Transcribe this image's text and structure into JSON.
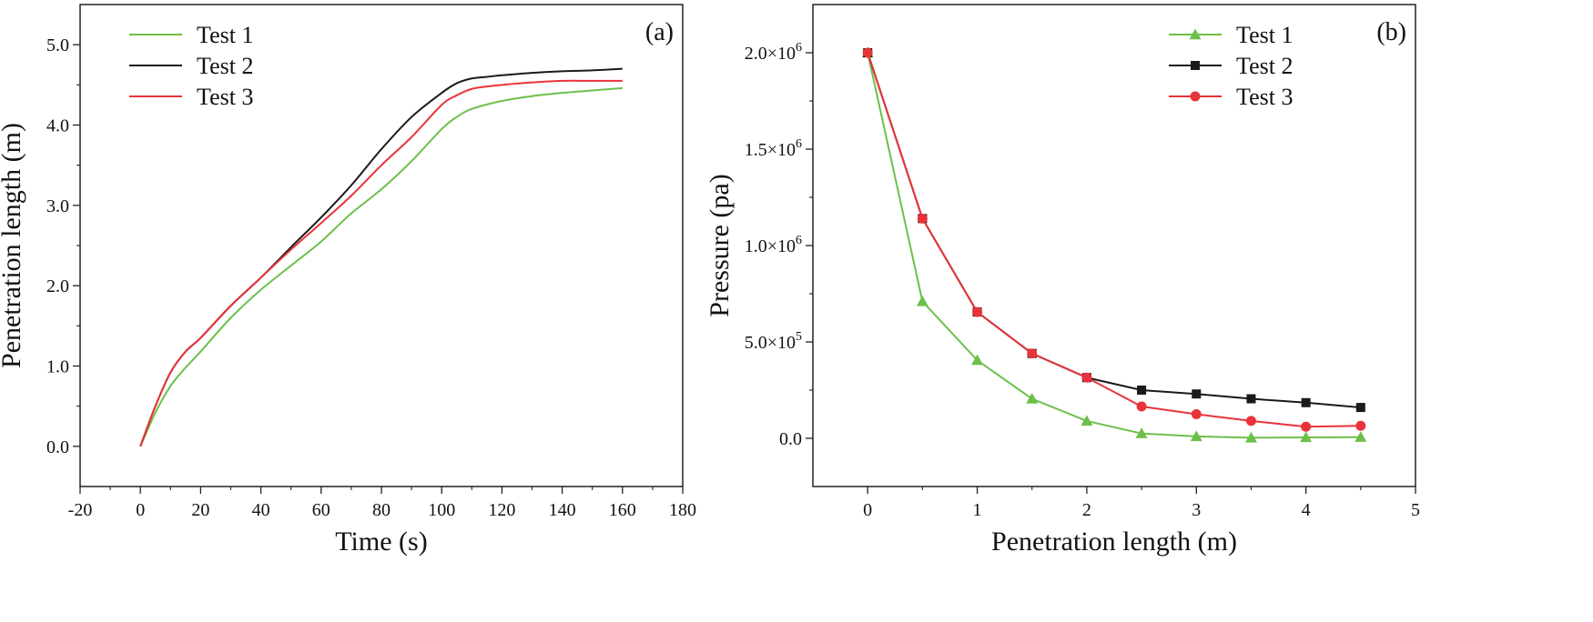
{
  "chart_data": [
    {
      "type": "line",
      "panel_label": "(a)",
      "xlabel": "Time (s)",
      "ylabel": "Penetration length (m)",
      "xlim": [
        -20,
        180
      ],
      "ylim": [
        -0.5,
        5.5
      ],
      "x_ticks": [
        -20,
        0,
        20,
        40,
        60,
        80,
        100,
        120,
        140,
        160,
        180
      ],
      "x_tick_labels": [
        "-20",
        "0",
        "20",
        "40",
        "60",
        "80",
        "100",
        "120",
        "140",
        "160",
        "180"
      ],
      "y_ticks": [
        0,
        1,
        2,
        3,
        4,
        5
      ],
      "y_tick_labels": [
        "0.0",
        "1.0",
        "2.0",
        "3.0",
        "4.0",
        "5.0"
      ],
      "legend": "top-left",
      "series": [
        {
          "name": "Test 1",
          "color": "#6cc04a",
          "x": [
            0,
            5,
            10,
            15,
            20,
            30,
            40,
            50,
            60,
            70,
            80,
            90,
            100,
            105,
            110,
            120,
            130,
            140,
            150,
            160
          ],
          "y": [
            0,
            0.42,
            0.75,
            0.98,
            1.18,
            1.6,
            1.95,
            2.25,
            2.55,
            2.9,
            3.2,
            3.55,
            3.95,
            4.1,
            4.2,
            4.3,
            4.36,
            4.4,
            4.43,
            4.46
          ]
        },
        {
          "name": "Test 2",
          "color": "#1a1a1a",
          "x": [
            0,
            5,
            10,
            15,
            20,
            30,
            40,
            50,
            60,
            70,
            80,
            90,
            100,
            105,
            110,
            115,
            120,
            130,
            140,
            150,
            160
          ],
          "y": [
            0,
            0.5,
            0.92,
            1.18,
            1.35,
            1.75,
            2.1,
            2.48,
            2.85,
            3.25,
            3.7,
            4.1,
            4.4,
            4.52,
            4.58,
            4.6,
            4.62,
            4.65,
            4.67,
            4.68,
            4.7
          ]
        },
        {
          "name": "Test 3",
          "color": "#e8333a",
          "x": [
            0,
            5,
            10,
            15,
            20,
            30,
            40,
            50,
            60,
            70,
            80,
            90,
            100,
            105,
            110,
            115,
            120,
            130,
            140,
            150,
            160
          ],
          "y": [
            0,
            0.5,
            0.92,
            1.18,
            1.35,
            1.75,
            2.1,
            2.45,
            2.78,
            3.12,
            3.5,
            3.85,
            4.25,
            4.37,
            4.45,
            4.48,
            4.5,
            4.53,
            4.55,
            4.55,
            4.55
          ]
        }
      ]
    },
    {
      "type": "line",
      "panel_label": "(b)",
      "xlabel": "Penetration length (m)",
      "ylabel": "Pressure (pa)",
      "xlim": [
        -0.5,
        5
      ],
      "ylim": [
        -250000,
        2250000
      ],
      "x_ticks": [
        0,
        1,
        2,
        3,
        4,
        5
      ],
      "x_tick_labels": [
        "0",
        "1",
        "2",
        "3",
        "4",
        "5"
      ],
      "y_ticks": [
        0,
        500000,
        1000000,
        1500000,
        2000000
      ],
      "y_tick_labels": [
        {
          "mantissa": "0.0",
          "exponent": ""
        },
        {
          "mantissa": "5.0×10",
          "exponent": "5"
        },
        {
          "mantissa": "1.0×10",
          "exponent": "6"
        },
        {
          "mantissa": "1.5×10",
          "exponent": "6"
        },
        {
          "mantissa": "2.0×10",
          "exponent": "6"
        }
      ],
      "legend": "top-right",
      "series": [
        {
          "name": "Test 1",
          "color": "#6cc04a",
          "marker": "triangle",
          "x": [
            0,
            0.5,
            1,
            1.5,
            2,
            2.5,
            3,
            3.5,
            4,
            4.5
          ],
          "y": [
            2000000,
            710000,
            405000,
            205000,
            90000,
            25000,
            10000,
            3000,
            5000,
            6000
          ]
        },
        {
          "name": "Test 2",
          "color": "#1a1a1a",
          "marker": "square",
          "x": [
            0,
            0.5,
            1,
            1.5,
            2,
            2.5,
            3,
            3.5,
            4,
            4.5
          ],
          "y": [
            2000000,
            1140000,
            655000,
            440000,
            315000,
            250000,
            230000,
            205000,
            185000,
            160000
          ]
        },
        {
          "name": "Test 3",
          "color": "#e8333a",
          "marker": "circle",
          "x": [
            0,
            0.5,
            1,
            1.5,
            2,
            2.5,
            3,
            3.5,
            4,
            4.5
          ],
          "y": [
            2000000,
            1140000,
            655000,
            440000,
            315000,
            165000,
            125000,
            90000,
            60000,
            65000
          ]
        }
      ]
    }
  ]
}
